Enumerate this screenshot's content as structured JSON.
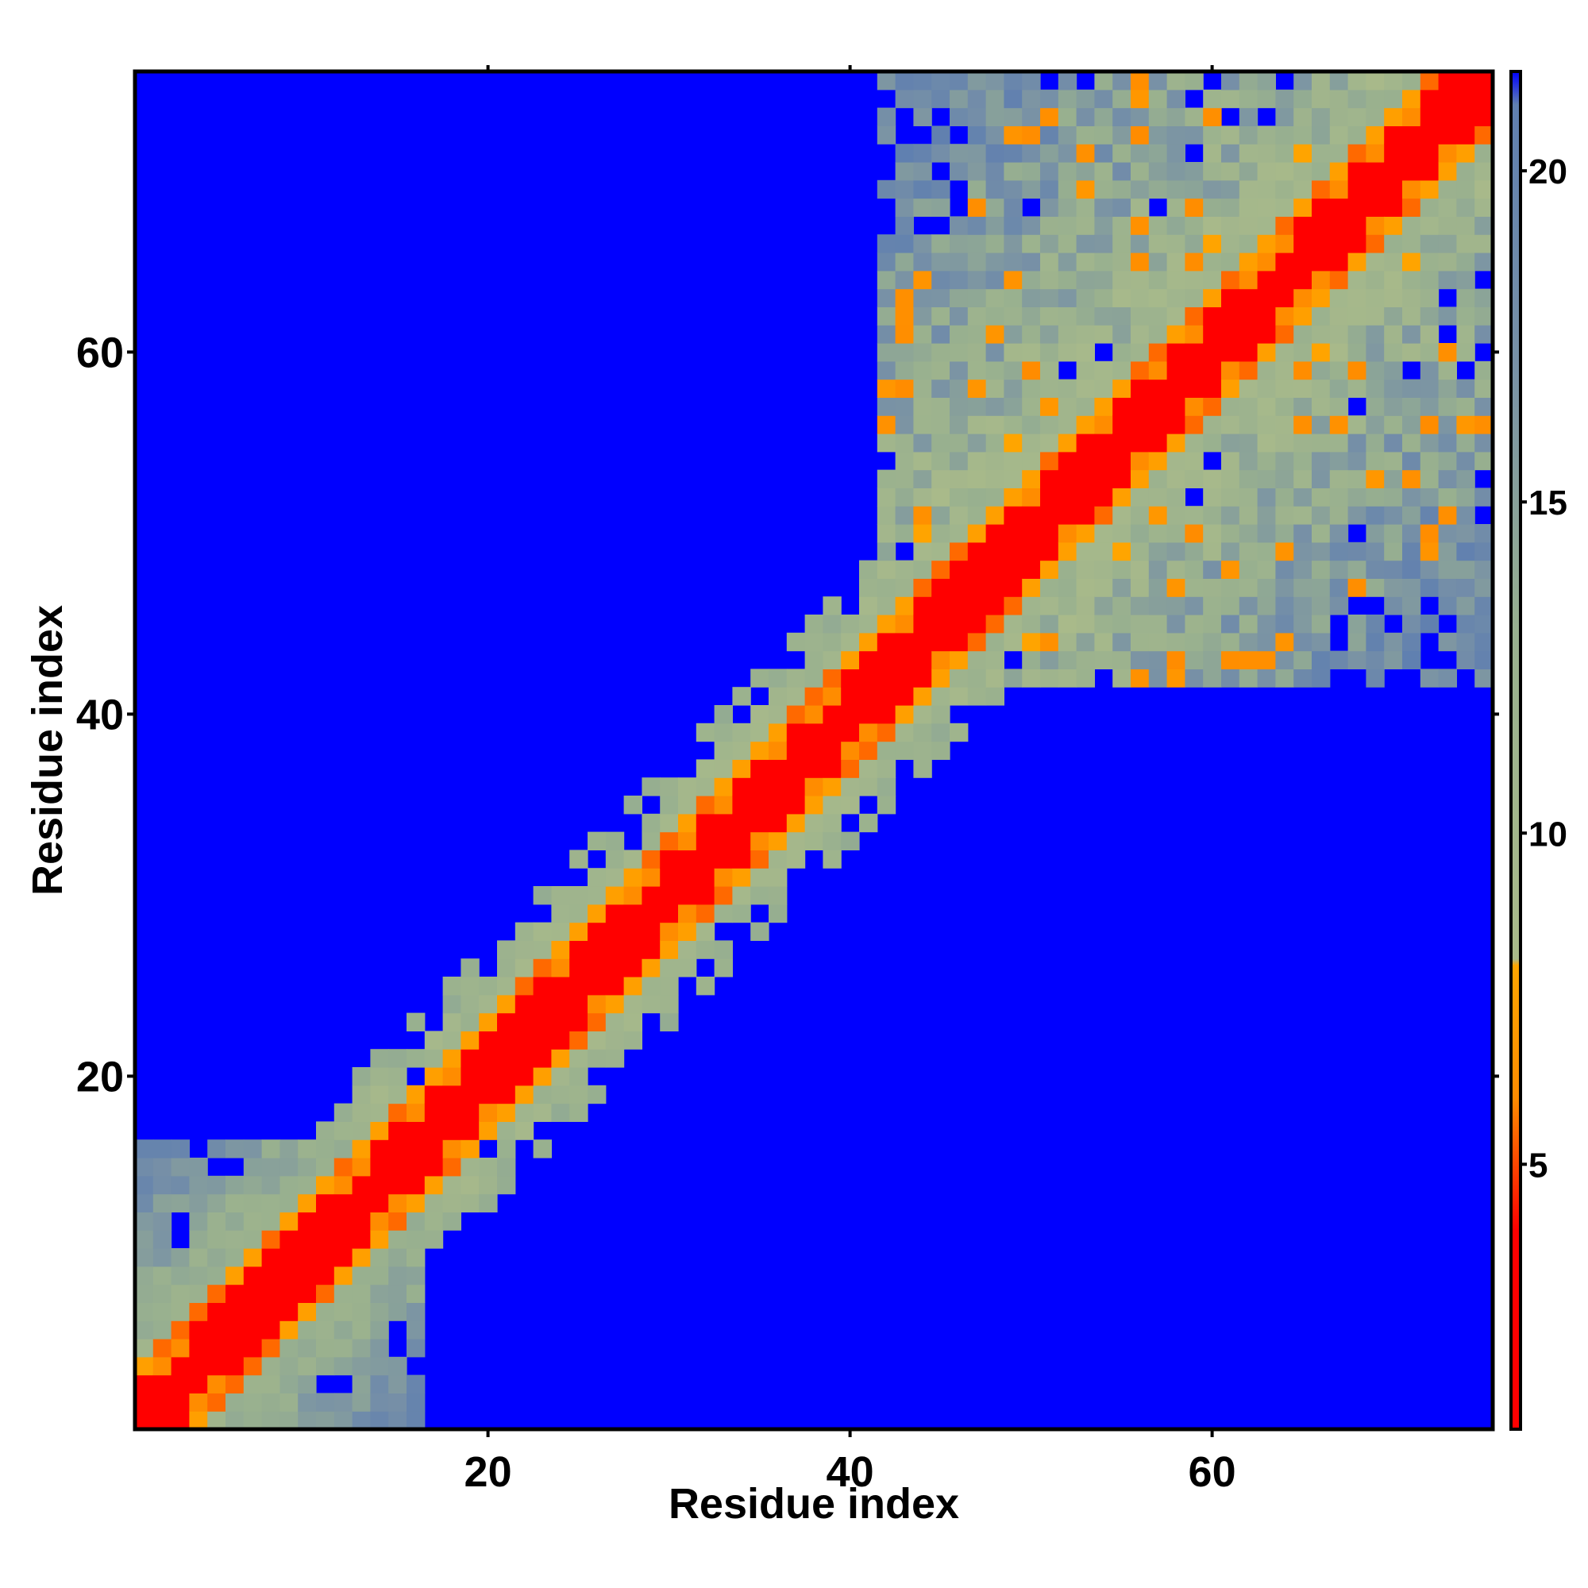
{
  "chart_data": {
    "type": "heatmap",
    "title": "",
    "xlabel": "Residue index",
    "ylabel": "Residue index",
    "n": 76,
    "xlim": [
      0.5,
      75.5
    ],
    "ylim": [
      0.5,
      75.5
    ],
    "x_ticks": [
      20,
      40,
      60
    ],
    "y_ticks": [
      20,
      40,
      60
    ],
    "x_tick_labels": [
      "20",
      "40",
      "60"
    ],
    "y_tick_labels": [
      "20",
      "40",
      "60"
    ],
    "colorbar": {
      "range": [
        1,
        21.5
      ],
      "ticks": [
        5,
        10,
        15,
        20
      ],
      "tick_labels": [
        "5",
        "10",
        "15",
        "20"
      ],
      "stops": [
        {
          "value": 1.0,
          "color": "#ff0000"
        },
        {
          "value": 4.0,
          "color": "#ff0000"
        },
        {
          "value": 6.0,
          "color": "#ff8c00"
        },
        {
          "value": 8.0,
          "color": "#ffa500"
        },
        {
          "value": 8.1,
          "color": "#a9ba8a"
        },
        {
          "value": 13.0,
          "color": "#98b08f"
        },
        {
          "value": 17.0,
          "color": "#7891a6"
        },
        {
          "value": 21.0,
          "color": "#5f7fb0"
        },
        {
          "value": 21.5,
          "color": "#0000ff"
        }
      ],
      "cutoff_color": "#0000ff"
    },
    "background_value": 21.5,
    "description_regions": {
      "diagonal_band": "distances below 4 along the diagonal, orange 5-8 one or two residues off",
      "contact_band_width": "about 4 residues (greenish 9-13)",
      "c_terminal_domain": "residues ~42-75 form a dense compact region with distances 10-20",
      "n_terminal_patch": "residues 1-14 compact region"
    }
  }
}
